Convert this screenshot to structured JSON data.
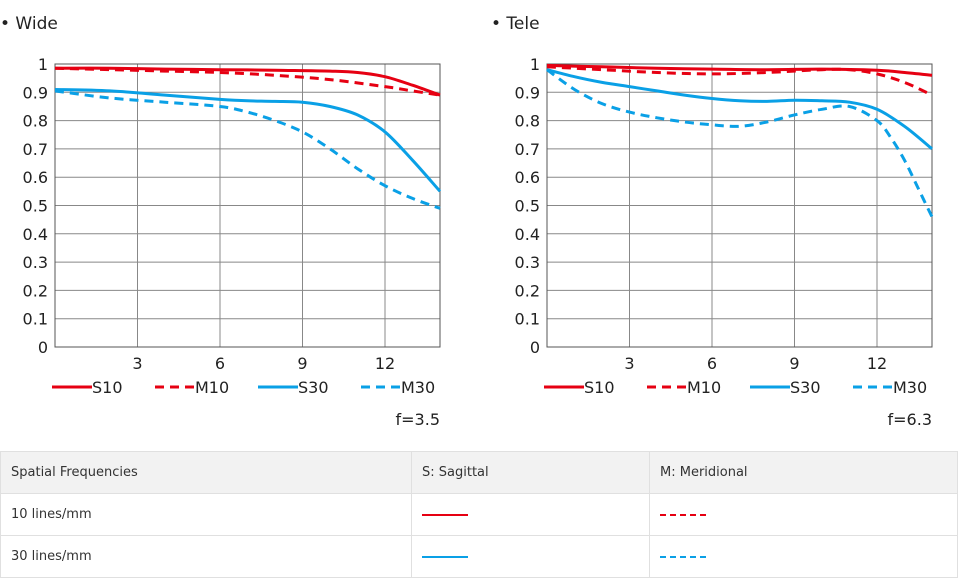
{
  "chart_data": [
    {
      "type": "line",
      "title": "• Wide",
      "footer": "f=3.5",
      "xlim": [
        0,
        14
      ],
      "ylim": [
        0,
        1
      ],
      "x_ticks": [
        3,
        6,
        9,
        12
      ],
      "x_tick_labels": [
        "3",
        "6",
        "9",
        "12"
      ],
      "y_ticks": [
        0,
        0.1,
        0.2,
        0.3,
        0.4,
        0.5,
        0.6,
        0.7,
        0.8,
        0.9,
        1
      ],
      "y_tick_labels": [
        "0",
        "0.1",
        "0.2",
        "0.3",
        "0.4",
        "0.5",
        "0.6",
        "0.7",
        "0.8",
        "0.9",
        "1"
      ],
      "grid": true,
      "legend": "bottom",
      "series": [
        {
          "name": "S10",
          "color": "#e60012",
          "dashed": false,
          "x": [
            0,
            2,
            4,
            6,
            8,
            10,
            11,
            12,
            13,
            14
          ],
          "y": [
            0.985,
            0.985,
            0.982,
            0.98,
            0.978,
            0.975,
            0.97,
            0.955,
            0.925,
            0.89
          ]
        },
        {
          "name": "M10",
          "color": "#e60012",
          "dashed": true,
          "x": [
            0,
            2,
            4,
            6,
            8,
            10,
            12,
            13,
            14
          ],
          "y": [
            0.985,
            0.98,
            0.975,
            0.97,
            0.96,
            0.945,
            0.92,
            0.905,
            0.89
          ]
        },
        {
          "name": "S30",
          "color": "#0aa0e6",
          "dashed": false,
          "x": [
            0,
            2,
            4,
            6,
            7,
            8,
            9,
            10,
            11,
            12,
            13,
            14
          ],
          "y": [
            0.91,
            0.905,
            0.89,
            0.875,
            0.87,
            0.868,
            0.865,
            0.85,
            0.82,
            0.76,
            0.66,
            0.55
          ]
        },
        {
          "name": "M30",
          "color": "#0aa0e6",
          "dashed": true,
          "x": [
            0,
            2,
            4,
            6,
            7,
            8,
            9,
            10,
            11,
            12,
            13,
            14
          ],
          "y": [
            0.905,
            0.88,
            0.865,
            0.85,
            0.83,
            0.8,
            0.76,
            0.7,
            0.63,
            0.57,
            0.525,
            0.49
          ]
        }
      ]
    },
    {
      "type": "line",
      "title": "• Tele",
      "footer": "f=6.3",
      "xlim": [
        0,
        14
      ],
      "ylim": [
        0,
        1
      ],
      "x_ticks": [
        3,
        6,
        9,
        12
      ],
      "x_tick_labels": [
        "3",
        "6",
        "9",
        "12"
      ],
      "y_ticks": [
        0,
        0.1,
        0.2,
        0.3,
        0.4,
        0.5,
        0.6,
        0.7,
        0.8,
        0.9,
        1
      ],
      "y_tick_labels": [
        "0",
        "0.1",
        "0.2",
        "0.3",
        "0.4",
        "0.5",
        "0.6",
        "0.7",
        "0.8",
        "0.9",
        "1"
      ],
      "grid": true,
      "legend": "bottom",
      "series": [
        {
          "name": "S10",
          "color": "#e60012",
          "dashed": false,
          "x": [
            0,
            2,
            4,
            6,
            8,
            10,
            12,
            13,
            14
          ],
          "y": [
            0.995,
            0.99,
            0.985,
            0.982,
            0.98,
            0.982,
            0.978,
            0.97,
            0.96
          ]
        },
        {
          "name": "M10",
          "color": "#e60012",
          "dashed": true,
          "x": [
            0,
            2,
            4,
            6,
            8,
            10,
            11,
            12,
            13,
            14
          ],
          "y": [
            0.99,
            0.98,
            0.97,
            0.965,
            0.97,
            0.98,
            0.98,
            0.965,
            0.935,
            0.89
          ]
        },
        {
          "name": "S30",
          "color": "#0aa0e6",
          "dashed": false,
          "x": [
            0,
            1,
            2,
            3,
            4,
            5,
            6,
            7,
            8,
            9,
            10,
            11,
            12,
            13,
            14
          ],
          "y": [
            0.98,
            0.955,
            0.935,
            0.92,
            0.905,
            0.89,
            0.878,
            0.87,
            0.868,
            0.872,
            0.87,
            0.865,
            0.84,
            0.78,
            0.7
          ]
        },
        {
          "name": "M30",
          "color": "#0aa0e6",
          "dashed": true,
          "x": [
            0,
            1,
            2,
            3,
            4,
            5,
            6,
            7,
            8,
            9,
            10,
            11,
            12,
            12.5,
            13,
            13.5,
            14
          ],
          "y": [
            0.98,
            0.91,
            0.86,
            0.83,
            0.81,
            0.795,
            0.785,
            0.78,
            0.795,
            0.82,
            0.84,
            0.85,
            0.8,
            0.74,
            0.66,
            0.56,
            0.46
          ]
        }
      ]
    }
  ],
  "table": {
    "headers": [
      "Spatial Frequencies",
      "S: Sagittal",
      "M: Meridional"
    ],
    "rows": [
      {
        "label": "10 lines/mm",
        "color": "#e60012"
      },
      {
        "label": "30 lines/mm",
        "color": "#0aa0e6"
      }
    ]
  }
}
